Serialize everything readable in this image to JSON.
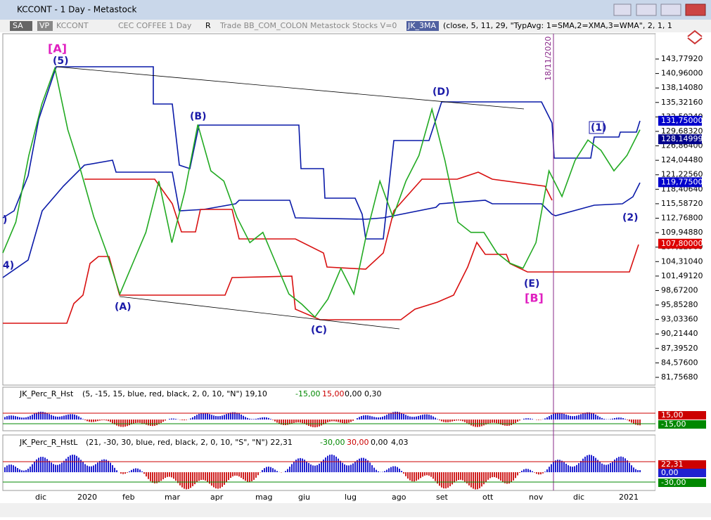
{
  "window": {
    "title": "KCCONT - 1 Day - Metastock"
  },
  "toolbar": {
    "items": [
      "SA",
      "VP",
      "KCCONT",
      "CEC COFFEE  1 Day",
      "R",
      "Trade  BB_COM_COLON  Metastock  Stocks  V=0",
      "JK_3MA",
      "(close,  5,  11,  29,  \"TypAvg: 1=SMA,2=XMA,3=WMA\",  2,  1,  1"
    ]
  },
  "annotations": {
    "labels": [
      "[A]",
      "(5)",
      "(B)",
      "(D)",
      "(A)",
      "(C)",
      "(E)",
      "[B]",
      "(1)",
      "(2)",
      "4)",
      ")"
    ],
    "date_marker": "18/11/2020"
  },
  "chart_data": {
    "type": "line",
    "color": "#22aa22",
    "values": [
      106,
      112,
      125,
      135,
      142,
      130,
      122,
      113,
      106,
      98,
      104,
      110,
      120,
      108,
      118,
      131,
      122,
      120,
      113,
      108,
      110,
      104,
      98,
      96,
      93.5,
      97,
      103,
      98,
      110,
      120,
      113,
      120,
      125,
      134,
      124,
      112,
      110,
      110,
      106,
      104,
      103,
      108,
      122,
      117,
      124,
      128,
      126,
      122,
      125,
      130
    ],
    "ylim": [
      80.25,
      148.71
    ],
    "yticks": [
      {
        "value": 143.7792,
        "label": "143,77920"
      },
      {
        "value": 140.96,
        "label": "140,96000"
      },
      {
        "value": 138.1408,
        "label": "138,14080"
      },
      {
        "value": 135.3216,
        "label": "135,32160"
      },
      {
        "value": 132.5024,
        "label": "132,50240"
      },
      {
        "value": 129.6832,
        "label": "129,68320"
      },
      {
        "value": 126.864,
        "label": "126,86400"
      },
      {
        "value": 124.0448,
        "label": "124,04480"
      },
      {
        "value": 121.2256,
        "label": "121,22560"
      },
      {
        "value": 118.4064,
        "label": "118,40640"
      },
      {
        "value": 115.5872,
        "label": "115,58720"
      },
      {
        "value": 112.768,
        "label": "112,76800"
      },
      {
        "value": 109.9488,
        "label": "109,94880"
      },
      {
        "value": 107.1296,
        "label": "107,12960"
      },
      {
        "value": 104.3104,
        "label": "104,31040"
      },
      {
        "value": 101.4912,
        "label": "101,49120"
      },
      {
        "value": 98.672,
        "label": "98,67200"
      },
      {
        "value": 95.8528,
        "label": "95,85280"
      },
      {
        "value": 93.0336,
        "label": "93,03360"
      },
      {
        "value": 90.2144,
        "label": "90,21440"
      },
      {
        "value": 87.3952,
        "label": "87,39520"
      },
      {
        "value": 84.576,
        "label": "84,57600"
      },
      {
        "value": 81.7568,
        "label": "81,75680"
      }
    ],
    "price_labels": [
      {
        "value": 131.75,
        "label": "131,75000",
        "color": "#0000cc"
      },
      {
        "value": 128.14999,
        "label": "128,14999",
        "color": "#00008b"
      },
      {
        "value": 119.775,
        "label": "119,77500",
        "color": "#0000cc"
      },
      {
        "value": 107.8,
        "label": "107,80000",
        "color": "#dd0000"
      }
    ]
  },
  "time_axis": [
    "dic",
    "2020",
    "feb",
    "mar",
    "apr",
    "mag",
    "giu",
    "lug",
    "ago",
    "set",
    "ott",
    "nov",
    "dic",
    "2021"
  ],
  "panel1": {
    "name": "JK_Perc_R_Hst",
    "params": "(5, -15, 15, blue, red, black, 2, 0, 10, \"N\")  19,10",
    "low": "-15,00",
    "high": "15,00",
    "extra": "0,00  0,30",
    "axis": [
      "15,00",
      "-15,00"
    ]
  },
  "panel2": {
    "name": "JK_Perc_R_HstL",
    "params": "(21, -30, 30, blue, red, black, 2, 0, 10, \"S\", \"N\")  22,31",
    "low": "-30,00",
    "high": "30,00",
    "zero": "0,00",
    "extra": "4,03",
    "axis": [
      "22,31",
      "0,00",
      "-30,00"
    ]
  }
}
